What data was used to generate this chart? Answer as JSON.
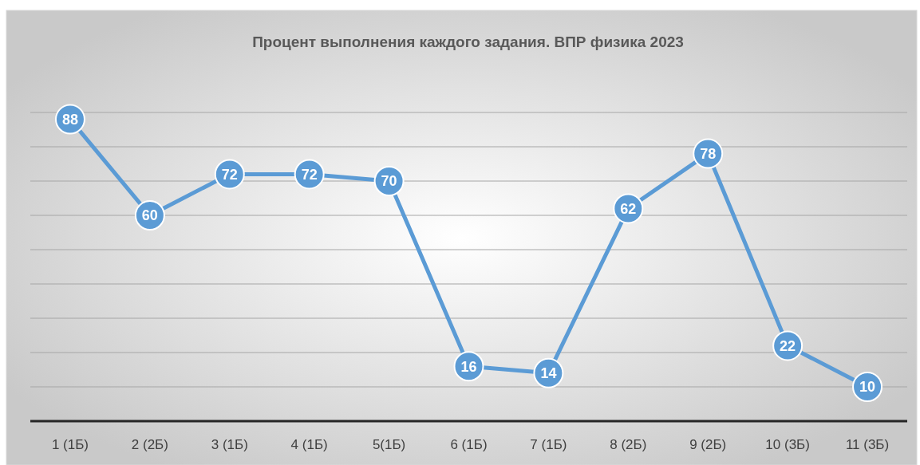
{
  "chart_data": {
    "type": "line",
    "title": "Процент выполнения каждого задания. ВПР физика 2023",
    "categories": [
      "1 (1Б)",
      "2 (2Б)",
      "3 (1Б)",
      "4 (1Б)",
      "5(1Б)",
      "6 (1Б)",
      "7 (1Б)",
      "8 (2Б)",
      "9 (2Б)",
      "10 (3Б)",
      "11 (3Б)"
    ],
    "series": [
      {
        "color": "#5b9bd5",
        "values": [
          88,
          60,
          72,
          72,
          70,
          16,
          14,
          62,
          78,
          22,
          10
        ]
      }
    ],
    "yticks": [
      {
        "value": 10,
        "label": null
      },
      {
        "value": 20,
        "label": null
      },
      {
        "value": 30,
        "label": null
      },
      {
        "value": 40,
        "label": null
      },
      {
        "value": 50,
        "label": null
      },
      {
        "value": 60,
        "label": null
      },
      {
        "value": 70,
        "label": null
      },
      {
        "value": 80,
        "label": null
      },
      {
        "value": 90,
        "label": null
      }
    ],
    "tick_labels": "x",
    "grid": "y",
    "marker": "circle",
    "line_style": "solid",
    "data_labels": true
  }
}
